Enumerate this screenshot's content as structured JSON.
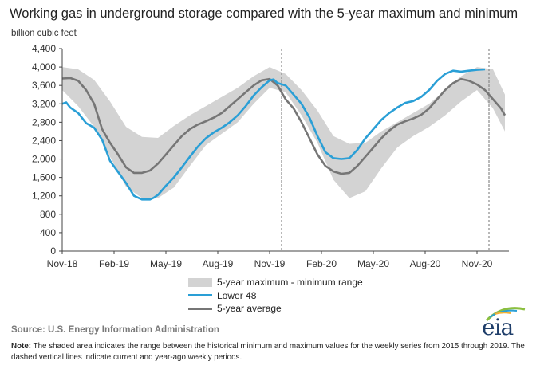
{
  "chart_data": {
    "type": "line",
    "title": "Working gas in underground storage compared with the 5-year maximum and minimum",
    "ylabel": "billion cubic feet",
    "ylim": [
      0,
      4400
    ],
    "yticks": [
      "0",
      "400",
      "800",
      "1,200",
      "1,600",
      "2,000",
      "2,400",
      "2,800",
      "3,200",
      "3,600",
      "4,000",
      "4,400"
    ],
    "xlim": [
      0,
      112
    ],
    "xticks": [
      {
        "label": "Nov-18",
        "x": 0
      },
      {
        "label": "Feb-19",
        "x": 13
      },
      {
        "label": "May-19",
        "x": 26
      },
      {
        "label": "Aug-19",
        "x": 39
      },
      {
        "label": "Nov-19",
        "x": 52
      },
      {
        "label": "Feb-20",
        "x": 65
      },
      {
        "label": "May-20",
        "x": 78
      },
      {
        "label": "Aug-20",
        "x": 91
      },
      {
        "label": "Nov-20",
        "x": 104
      }
    ],
    "vlines": [
      55,
      107
    ],
    "grid": false,
    "legend": "bottom",
    "band": {
      "name": "5-year maximum - minimum range",
      "x": [
        0,
        4,
        8,
        12,
        16,
        20,
        24,
        28,
        32,
        36,
        40,
        44,
        48,
        52,
        56,
        60,
        64,
        68,
        72,
        76,
        80,
        84,
        88,
        92,
        96,
        100,
        104,
        108,
        111
      ],
      "max": [
        4000,
        3950,
        3720,
        3250,
        2700,
        2480,
        2460,
        2720,
        2950,
        3150,
        3350,
        3550,
        3800,
        4000,
        3850,
        3500,
        3050,
        2500,
        2330,
        2350,
        2600,
        2800,
        3000,
        3200,
        3500,
        3800,
        4000,
        3950,
        3400
      ],
      "min": [
        3500,
        3150,
        2700,
        2050,
        1400,
        1150,
        1150,
        1380,
        1850,
        2300,
        2550,
        2800,
        3200,
        3550,
        3450,
        2950,
        2350,
        1550,
        1150,
        1300,
        1800,
        2250,
        2500,
        2700,
        2950,
        3250,
        3500,
        3100,
        2600
      ],
      "color": "#d3d3d3"
    },
    "series": [
      {
        "name": "Lower 48",
        "color": "#2a9fd6",
        "x": [
          0,
          1,
          2,
          4,
          6,
          8,
          10,
          12,
          14,
          16,
          18,
          20,
          22,
          23,
          24,
          26,
          28,
          30,
          32,
          34,
          36,
          38,
          40,
          42,
          44,
          46,
          48,
          50,
          52,
          53,
          54,
          56,
          58,
          60,
          62,
          64,
          66,
          68,
          70,
          72,
          74,
          76,
          78,
          80,
          82,
          84,
          86,
          88,
          90,
          92,
          94,
          96,
          98,
          100,
          102,
          104,
          106
        ],
        "values": [
          3200,
          3230,
          3120,
          3000,
          2780,
          2680,
          2420,
          1960,
          1720,
          1480,
          1200,
          1120,
          1120,
          1160,
          1220,
          1420,
          1600,
          1820,
          2050,
          2270,
          2450,
          2580,
          2680,
          2800,
          2950,
          3150,
          3380,
          3560,
          3710,
          3730,
          3650,
          3600,
          3400,
          3200,
          2900,
          2500,
          2150,
          2020,
          2000,
          2020,
          2200,
          2450,
          2650,
          2850,
          3000,
          3120,
          3220,
          3260,
          3350,
          3500,
          3700,
          3850,
          3920,
          3900,
          3920,
          3940,
          3950
        ]
      },
      {
        "name": "5-year average",
        "color": "#767676",
        "x": [
          0,
          2,
          4,
          6,
          8,
          10,
          12,
          14,
          16,
          18,
          20,
          22,
          24,
          26,
          28,
          30,
          32,
          34,
          36,
          38,
          40,
          42,
          44,
          46,
          48,
          50,
          52,
          54,
          56,
          58,
          60,
          62,
          64,
          66,
          68,
          70,
          72,
          74,
          76,
          78,
          80,
          82,
          84,
          86,
          88,
          90,
          92,
          94,
          96,
          98,
          100,
          102,
          104,
          106,
          108,
          110,
          111
        ],
        "values": [
          3750,
          3760,
          3700,
          3500,
          3200,
          2650,
          2350,
          2100,
          1820,
          1700,
          1700,
          1750,
          1900,
          2100,
          2300,
          2500,
          2650,
          2750,
          2820,
          2900,
          3000,
          3150,
          3300,
          3450,
          3600,
          3710,
          3740,
          3600,
          3300,
          3100,
          2800,
          2450,
          2100,
          1850,
          1730,
          1680,
          1700,
          1850,
          2050,
          2250,
          2450,
          2620,
          2750,
          2820,
          2880,
          2960,
          3100,
          3300,
          3500,
          3650,
          3740,
          3700,
          3620,
          3500,
          3300,
          3100,
          2950
        ]
      }
    ]
  },
  "legend_items": {
    "band": "5-year maximum - minimum range",
    "l48": "Lower 48",
    "avg": "5-year average"
  },
  "source": "Source:  U.S. Energy Information Administration",
  "note_label": "Note:",
  "note_text": " The shaded area indicates the range between the historical minimum and maximum values for the weekly series from 2015 through 2019. The dashed vertical lines indicate current and year-ago weekly periods.",
  "logo_text": "eia"
}
